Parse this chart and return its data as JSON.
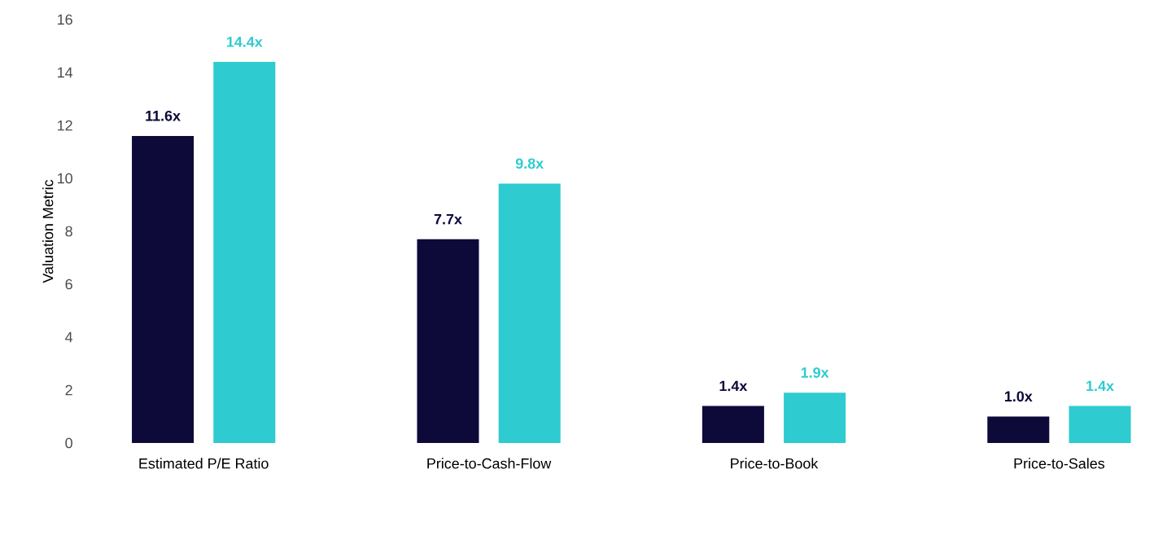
{
  "chart_data": {
    "type": "bar",
    "ylabel": "Valuation Metric",
    "categories": [
      "Estimated P/E Ratio",
      "Price-to-Cash-Flow",
      "Price-to-Book",
      "Price-to-Sales"
    ],
    "series": [
      {
        "color": "#0d0a3a",
        "values": [
          11.6,
          7.7,
          1.4,
          1.0
        ],
        "value_labels": [
          "11.6x",
          "7.7x",
          "1.4x",
          "1.0x"
        ]
      },
      {
        "color": "#2ecbd0",
        "values": [
          14.4,
          9.8,
          1.9,
          1.4
        ],
        "value_labels": [
          "14.4x",
          "9.8x",
          "1.9x",
          "1.4x"
        ]
      }
    ],
    "ylim": [
      0,
      16
    ],
    "yticks": [
      0,
      2,
      4,
      6,
      8,
      10,
      12,
      14,
      16
    ],
    "grid": false
  }
}
